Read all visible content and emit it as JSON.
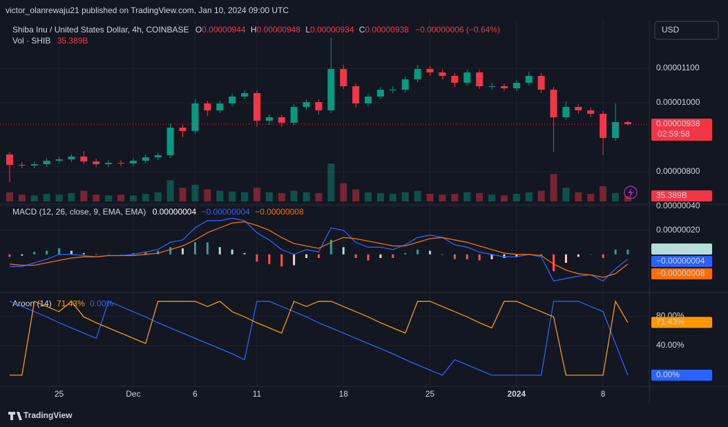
{
  "header": {
    "publisher": "victor_olanrewaju21 published on TradingView.com, Jan 10, 2024 09:00 UTC",
    "currency": "USD",
    "footer": "TradingView"
  },
  "chart_data": [
    {
      "type": "candlestick",
      "title": "Shiba Inu / United States Dollar, 4h, COINBASE",
      "ohlc": [
        {
          "label": "O",
          "value": "0.00000944"
        },
        {
          "label": "H",
          "value": "0.00000948"
        },
        {
          "label": "L",
          "value": "0.00000934"
        },
        {
          "label": "C",
          "value": "0.00000938"
        }
      ],
      "change": "−0.00000006 (−0.64%)",
      "up_color": "#089981",
      "down_color": "#f23645",
      "categories": [
        null,
        null,
        null,
        null,
        "25",
        null,
        null,
        null,
        null,
        null,
        "Dec",
        null,
        null,
        null,
        null,
        "6",
        null,
        null,
        null,
        null,
        "11",
        null,
        null,
        null,
        null,
        null,
        null,
        "18",
        null,
        null,
        null,
        null,
        null,
        null,
        "25",
        null,
        null,
        null,
        null,
        null,
        null,
        "2024",
        null,
        null,
        null,
        null,
        null,
        null,
        "8",
        null,
        null
      ],
      "open": [
        8.5e-06,
        8.2e-06,
        8.18e-06,
        8.22e-06,
        8.32e-06,
        8.36e-06,
        8.44e-06,
        8.3e-06,
        8.22e-06,
        8.26e-06,
        8.24e-06,
        8.32e-06,
        8.42e-06,
        8.48e-06,
        9.28e-06,
        9.18e-06,
        9.98e-06,
        9.78e-06,
        9.98e-06,
        1.018e-05,
        1.028e-05,
        9.48e-06,
        9.58e-06,
        9.42e-06,
        9.88e-06,
        1.002e-05,
        9.78e-06,
        1.098e-05,
        1.048e-05,
        9.98e-06,
        1.018e-05,
        1.038e-05,
        1.038e-05,
        1.068e-05,
        1.098e-05,
        1.088e-05,
        1.078e-05,
        1.058e-05,
        1.088e-05,
        1.048e-05,
        1.048e-05,
        1.042e-05,
        1.058e-05,
        1.078e-05,
        1.038e-05,
        9.58e-06,
        9.88e-06,
        9.78e-06,
        9.68e-06,
        8.98e-06,
        9.44e-06
      ],
      "high": [
        8.58e-06,
        8.28e-06,
        8.3e-06,
        8.4e-06,
        8.44e-06,
        8.52e-06,
        8.6e-06,
        8.38e-06,
        8.34e-06,
        8.34e-06,
        8.4e-06,
        8.5e-06,
        8.56e-06,
        9.4e-06,
        9.36e-06,
        1.01e-05,
        1.006e-05,
        1.006e-05,
        1.026e-05,
        1.036e-05,
        1.036e-05,
        9.66e-06,
        9.66e-06,
        9.96e-06,
        1.01e-05,
        1.01e-05,
        1.188e-05,
        1.11e-05,
        1.056e-05,
        1.026e-05,
        1.046e-05,
        1.048e-05,
        1.076e-05,
        1.11e-05,
        1.106e-05,
        1.096e-05,
        1.086e-05,
        1.096e-05,
        1.096e-05,
        1.058e-05,
        1.056e-05,
        1.066e-05,
        1.09e-05,
        1.086e-05,
        1.046e-05,
        1.004e-05,
        9.96e-06,
        9.86e-06,
        9.76e-06,
        9.98e-06,
        9.48e-06
      ],
      "low": [
        7.7e-06,
        8.1e-06,
        8.1e-06,
        8.14e-06,
        8.24e-06,
        8.28e-06,
        8.22e-06,
        8.14e-06,
        8.14e-06,
        8.16e-06,
        8.16e-06,
        8.24e-06,
        8.34e-06,
        8.4e-06,
        9e-06,
        9.1e-06,
        9.62e-06,
        9.7e-06,
        9.9e-06,
        1.01e-05,
        9.3e-06,
        9.36e-06,
        9.3e-06,
        9.34e-06,
        9.8e-06,
        9.66e-06,
        9.7e-06,
        1.04e-05,
        9.86e-06,
        9.9e-06,
        1.01e-05,
        1.028e-05,
        1.03e-05,
        1.06e-05,
        1.078e-05,
        1.068e-05,
        1.046e-05,
        1.05e-05,
        1.04e-05,
        1.038e-05,
        1.034e-05,
        1.034e-05,
        1.05e-05,
        1.028e-05,
        8.58e-06,
        9.5e-06,
        9.68e-06,
        9.58e-06,
        8.48e-06,
        8.9e-06,
        9.34e-06
      ],
      "close": [
        8.2e-06,
        8.18e-06,
        8.22e-06,
        8.32e-06,
        8.36e-06,
        8.44e-06,
        8.3e-06,
        8.22e-06,
        8.26e-06,
        8.24e-06,
        8.32e-06,
        8.42e-06,
        8.48e-06,
        9.28e-06,
        9.18e-06,
        9.98e-06,
        9.78e-06,
        9.98e-06,
        1.018e-05,
        1.028e-05,
        9.48e-06,
        9.58e-06,
        9.42e-06,
        9.88e-06,
        1.002e-05,
        9.78e-06,
        1.098e-05,
        1.048e-05,
        9.98e-06,
        1.018e-05,
        1.038e-05,
        1.038e-05,
        1.068e-05,
        1.098e-05,
        1.088e-05,
        1.078e-05,
        1.058e-05,
        1.088e-05,
        1.048e-05,
        1.048e-05,
        1.042e-05,
        1.058e-05,
        1.078e-05,
        1.038e-05,
        9.58e-06,
        9.88e-06,
        9.78e-06,
        9.68e-06,
        8.98e-06,
        9.44e-06,
        9.38e-06
      ],
      "ylim": [
        7.08e-06,
        1.238e-05
      ],
      "yticks": [
        {
          "value": 1.1e-05,
          "label": "0.00001100"
        },
        {
          "value": 1e-05,
          "label": "0.00001000"
        },
        {
          "value": 8e-06,
          "label": "0.00000800"
        }
      ],
      "price_tag": "0.00000938",
      "countdown": "02:59:58"
    },
    {
      "type": "volume",
      "title": "Vol · SHIB",
      "last_label": "35.389B",
      "values": [
        60,
        45,
        40,
        50,
        45,
        55,
        70,
        45,
        40,
        45,
        40,
        50,
        60,
        140,
        90,
        110,
        80,
        70,
        65,
        60,
        90,
        60,
        55,
        70,
        60,
        55,
        250,
        120,
        80,
        60,
        55,
        50,
        60,
        70,
        50,
        45,
        50,
        60,
        55,
        45,
        40,
        50,
        60,
        70,
        180,
        90,
        60,
        50,
        100,
        55,
        35.389
      ]
    },
    {
      "type": "macd",
      "title": "MACD (12, 26, close, 9, EMA, EMA)",
      "ylim": [
        -3.1e-07,
        4.1e-07
      ],
      "yticks": [
        {
          "value": 4e-07,
          "label": "0.00000040"
        },
        {
          "value": 2e-07,
          "label": "0.00000020"
        }
      ],
      "histogram": {
        "label": "0.00000004",
        "values": [
          -2e-08,
          -1e-08,
          2e-08,
          3e-08,
          5e-08,
          3e-08,
          1e-08,
          0,
          0,
          0,
          1e-08,
          2e-08,
          3e-08,
          6e-08,
          5e-08,
          1e-07,
          1e-07,
          6e-08,
          4e-08,
          1e-08,
          -6e-08,
          -8e-08,
          -1e-07,
          -9e-08,
          -3e-08,
          -3e-08,
          1.2e-07,
          6e-08,
          -3e-08,
          -5e-08,
          -3e-08,
          -3e-08,
          1e-08,
          4e-08,
          3e-08,
          0,
          -4e-08,
          -4e-08,
          -5e-08,
          -4e-08,
          -3e-08,
          -2e-08,
          0,
          -1e-08,
          -1.4e-07,
          -7e-08,
          -2e-08,
          0,
          -3e-08,
          4e-08,
          4e-08
        ]
      },
      "series": [
        {
          "color": "#2962ff",
          "label": "−0.00000004",
          "values": [
            -1e-07,
            -1e-07,
            -7e-08,
            -4e-08,
            0,
            0,
            -1e-08,
            -2e-08,
            -1e-08,
            -1e-08,
            0,
            2e-08,
            4e-08,
            1e-07,
            1.2e-07,
            2.2e-07,
            2.8e-07,
            2.8e-07,
            3e-07,
            2.8e-07,
            1.8e-07,
            1.2e-07,
            4e-08,
            0,
            4e-08,
            2e-08,
            2.2e-07,
            2e-07,
            1e-07,
            6e-08,
            6e-08,
            4e-08,
            8e-08,
            1.4e-07,
            1.6e-07,
            1.4e-07,
            8e-08,
            6e-08,
            2e-08,
            0,
            -2e-08,
            -2e-08,
            0,
            -2e-08,
            -2.2e-07,
            -2e-07,
            -1.8e-07,
            -1.7e-07,
            -2.2e-07,
            -1.2e-07,
            -4e-08
          ]
        },
        {
          "color": "#ff6d00",
          "label": "−0.00000008",
          "values": [
            -8e-08,
            -9e-08,
            -9e-08,
            -7e-08,
            -5e-08,
            -3e-08,
            -2e-08,
            -2e-08,
            -1e-08,
            -1e-08,
            -1e-08,
            0,
            1e-08,
            4e-08,
            7e-08,
            1.2e-07,
            1.8e-07,
            2.2e-07,
            2.6e-07,
            2.7e-07,
            2.4e-07,
            2e-07,
            1.4e-07,
            9e-08,
            7e-08,
            5e-08,
            1e-07,
            1.4e-07,
            1.3e-07,
            1.1e-07,
            9e-08,
            7e-08,
            7e-08,
            1e-07,
            1.3e-07,
            1.4e-07,
            1.2e-07,
            1e-07,
            7e-08,
            4e-08,
            1e-08,
            0,
            0,
            -1e-08,
            -8e-08,
            -1.3e-07,
            -1.6e-07,
            -1.7e-07,
            -1.9e-07,
            -1.6e-07,
            -8e-08
          ]
        }
      ]
    },
    {
      "type": "aroon",
      "title": "Aroon (14)",
      "ylim": [
        -15,
        111
      ],
      "yticks": [
        {
          "value": 80,
          "label": "80.00%"
        },
        {
          "value": 40,
          "label": "40.00%"
        }
      ],
      "series": [
        {
          "color": "#ff9800",
          "label": "71.43%",
          "values": [
            0,
            0,
            100,
            93,
            86,
            100,
            79,
            71,
            64,
            57,
            50,
            43,
            100,
            100,
            100,
            100,
            93,
            100,
            86,
            79,
            71,
            64,
            57,
            100,
            93,
            100,
            100,
            93,
            86,
            79,
            71,
            64,
            57,
            100,
            100,
            93,
            86,
            79,
            71,
            64,
            100,
            100,
            93,
            86,
            79,
            0,
            0,
            0,
            0,
            100,
            71.43
          ]
        },
        {
          "color": "#2962ff",
          "label": "0.00%",
          "values": [
            100,
            93,
            86,
            79,
            71,
            64,
            57,
            50,
            100,
            93,
            86,
            79,
            71,
            64,
            57,
            50,
            43,
            36,
            29,
            21,
            100,
            100,
            93,
            86,
            79,
            71,
            64,
            57,
            50,
            43,
            36,
            29,
            21,
            14,
            7,
            0,
            21,
            14,
            7,
            0,
            0,
            0,
            0,
            0,
            100,
            100,
            100,
            93,
            86,
            43,
            0
          ]
        }
      ]
    }
  ]
}
